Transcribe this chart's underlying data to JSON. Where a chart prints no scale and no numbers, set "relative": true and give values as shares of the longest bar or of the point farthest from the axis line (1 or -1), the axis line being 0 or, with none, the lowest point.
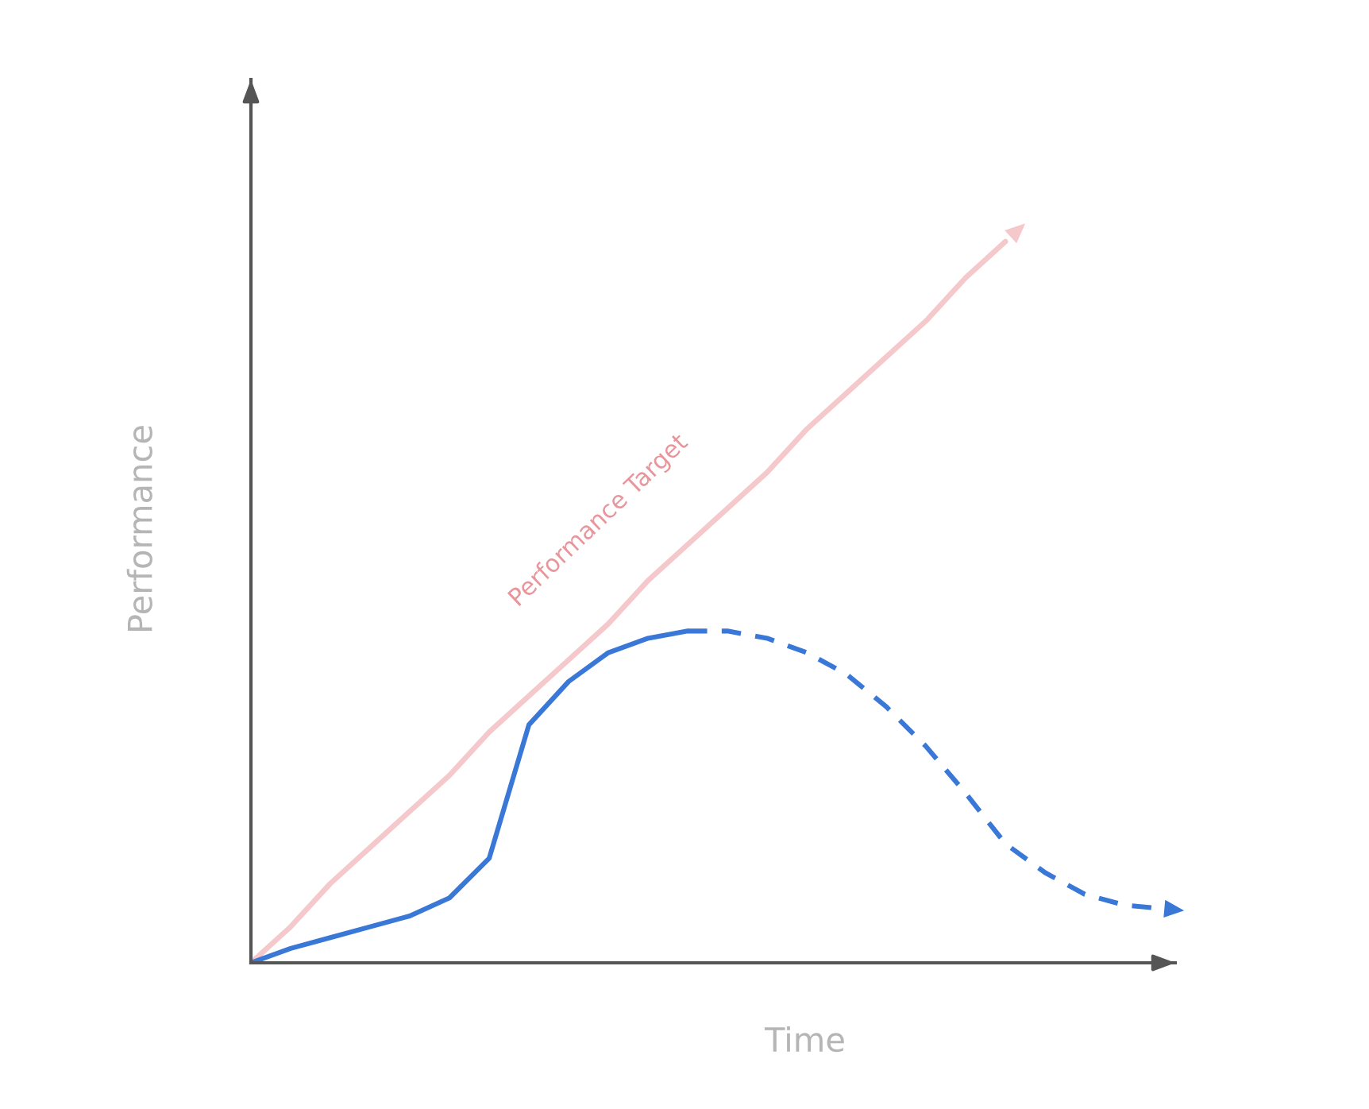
{
  "chart_data": {
    "type": "line",
    "relative": true,
    "xlabel": "Time",
    "ylabel": "Performance",
    "marker": "none",
    "annotations": [
      "Performance Target"
    ],
    "categories": [
      null,
      null,
      null,
      null,
      null,
      null,
      null,
      null,
      null,
      null,
      null,
      null,
      null,
      null,
      null,
      null,
      null,
      null,
      null,
      null,
      null,
      null,
      null,
      null
    ],
    "series": [
      {
        "color": "#f5c9cc",
        "line_style": "solid",
        "values": [
          0,
          0.05,
          0.11,
          0.16,
          0.21,
          0.26,
          0.32,
          0.37,
          0.42,
          0.47,
          0.53,
          0.58,
          0.63,
          0.68,
          0.74,
          0.79,
          0.84,
          0.89,
          0.95,
          1,
          null,
          null,
          null,
          null
        ]
      },
      {
        "color": "#3a78d8",
        "line_style": "solid",
        "values": [
          0,
          0.02,
          0.035,
          0.05,
          0.065,
          0.09,
          0.145,
          0.33,
          0.39,
          0.43,
          0.45,
          0.46,
          null,
          null,
          null,
          null,
          null,
          null,
          null,
          null,
          null,
          null,
          null,
          null
        ]
      },
      {
        "color": "#3a78d8",
        "line_style": "dashed",
        "values": [
          null,
          null,
          null,
          null,
          null,
          null,
          null,
          null,
          null,
          null,
          null,
          0.46,
          0.46,
          0.45,
          0.43,
          0.4,
          0.355,
          0.3,
          0.235,
          0.165,
          0.125,
          0.095,
          0.08,
          0.075
        ]
      }
    ]
  }
}
